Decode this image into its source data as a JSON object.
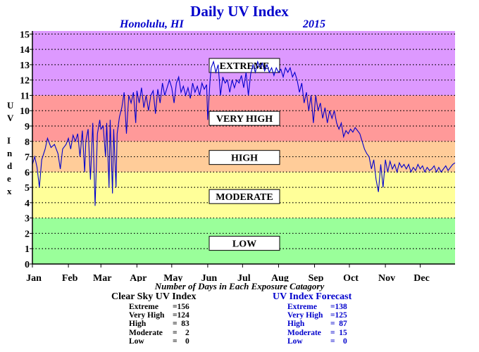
{
  "chart_data": {
    "type": "line",
    "title": "Daily UV Index",
    "subtitle_location": "Honolulu, HI",
    "subtitle_year": "2015",
    "ylabel": "UV Index",
    "ylim": [
      0,
      15.2
    ],
    "xlim": [
      1,
      365
    ],
    "y_ticks": [
      "0",
      "1",
      "2",
      "3",
      "4",
      "5",
      "6",
      "7",
      "8",
      "9",
      "10",
      "11",
      "12",
      "13",
      "14",
      "15"
    ],
    "months": [
      "Jan",
      "Feb",
      "Mar",
      "Apr",
      "May",
      "Jun",
      "Jul",
      "Aug",
      "Sep",
      "Oct",
      "Nov",
      "Dec"
    ],
    "grid": true,
    "bands": [
      {
        "label": "LOW",
        "from": 0,
        "to": 3,
        "color": "#9aff9a",
        "label_y": 1.35
      },
      {
        "label": "MODERATE",
        "from": 3,
        "to": 6,
        "color": "#ffff99",
        "label_y": 4.4
      },
      {
        "label": "HIGH",
        "from": 6,
        "to": 8,
        "color": "#ffcc99",
        "label_y": 6.95
      },
      {
        "label": "VERY HIGH",
        "from": 8,
        "to": 11,
        "color": "#ff9999",
        "label_y": 9.5
      },
      {
        "label": "EXTREME",
        "from": 11,
        "to": 15.2,
        "color": "#dd99ff",
        "label_y": 12.95
      }
    ],
    "series": [
      {
        "color": "#0000cc",
        "points": [
          [
            1,
            6.5
          ],
          [
            3,
            7.0
          ],
          [
            5,
            6.3
          ],
          [
            7,
            5.0
          ],
          [
            9,
            6.8
          ],
          [
            12,
            7.5
          ],
          [
            14,
            8.2
          ],
          [
            17,
            7.6
          ],
          [
            20,
            7.8
          ],
          [
            23,
            7.2
          ],
          [
            25,
            6.2
          ],
          [
            27,
            7.5
          ],
          [
            30,
            7.8
          ],
          [
            32,
            8.2
          ],
          [
            34,
            7.5
          ],
          [
            36,
            8.4
          ],
          [
            38,
            8.0
          ],
          [
            40,
            8.5
          ],
          [
            42,
            7.0
          ],
          [
            44,
            8.7
          ],
          [
            46,
            6.0
          ],
          [
            47,
            8.0
          ],
          [
            49,
            8.8
          ],
          [
            51,
            5.5
          ],
          [
            53,
            9.2
          ],
          [
            55,
            3.8
          ],
          [
            57,
            8.5
          ],
          [
            59,
            9.4
          ],
          [
            60,
            8.8
          ],
          [
            62,
            9.0
          ],
          [
            64,
            7.0
          ],
          [
            65,
            9.2
          ],
          [
            67,
            5.0
          ],
          [
            68,
            9.4
          ],
          [
            70,
            4.6
          ],
          [
            71,
            8.8
          ],
          [
            73,
            5.0
          ],
          [
            74,
            8.5
          ],
          [
            76,
            9.6
          ],
          [
            78,
            10.2
          ],
          [
            80,
            11.2
          ],
          [
            82,
            8.5
          ],
          [
            84,
            11.0
          ],
          [
            86,
            10.5
          ],
          [
            88,
            11.2
          ],
          [
            90,
            9.2
          ],
          [
            91,
            11.3
          ],
          [
            93,
            10.5
          ],
          [
            95,
            11.5
          ],
          [
            97,
            10.2
          ],
          [
            99,
            11.0
          ],
          [
            101,
            10.0
          ],
          [
            103,
            11.0
          ],
          [
            105,
            11.3
          ],
          [
            107,
            9.8
          ],
          [
            109,
            11.4
          ],
          [
            111,
            10.5
          ],
          [
            113,
            11.8
          ],
          [
            115,
            11.0
          ],
          [
            117,
            11.5
          ],
          [
            119,
            12.0
          ],
          [
            121,
            11.5
          ],
          [
            123,
            10.5
          ],
          [
            125,
            11.8
          ],
          [
            127,
            12.2
          ],
          [
            129,
            11.2
          ],
          [
            131,
            11.6
          ],
          [
            133,
            11.0
          ],
          [
            135,
            11.5
          ],
          [
            137,
            10.8
          ],
          [
            139,
            11.8
          ],
          [
            141,
            11.2
          ],
          [
            143,
            11.6
          ],
          [
            145,
            11.0
          ],
          [
            147,
            11.8
          ],
          [
            149,
            11.4
          ],
          [
            151,
            11.7
          ],
          [
            152,
            9.4
          ],
          [
            154,
            12.0
          ],
          [
            155,
            12.8
          ],
          [
            157,
            13.2
          ],
          [
            159,
            12.5
          ],
          [
            161,
            13.0
          ],
          [
            163,
            11.0
          ],
          [
            165,
            12.2
          ],
          [
            167,
            11.8
          ],
          [
            169,
            12.0
          ],
          [
            171,
            11.2
          ],
          [
            173,
            12.0
          ],
          [
            175,
            11.5
          ],
          [
            177,
            12.0
          ],
          [
            179,
            11.8
          ],
          [
            181,
            12.3
          ],
          [
            183,
            11.5
          ],
          [
            185,
            12.5
          ],
          [
            187,
            11.0
          ],
          [
            189,
            12.4
          ],
          [
            191,
            13.0
          ],
          [
            193,
            12.5
          ],
          [
            195,
            13.2
          ],
          [
            197,
            12.8
          ],
          [
            199,
            13.1
          ],
          [
            201,
            12.6
          ],
          [
            203,
            13.0
          ],
          [
            205,
            12.5
          ],
          [
            207,
            12.8
          ],
          [
            209,
            12.3
          ],
          [
            211,
            12.8
          ],
          [
            213,
            12.5
          ],
          [
            215,
            12.7
          ],
          [
            217,
            12.2
          ],
          [
            219,
            12.8
          ],
          [
            221,
            12.5
          ],
          [
            223,
            12.8
          ],
          [
            225,
            12.2
          ],
          [
            227,
            12.5
          ],
          [
            229,
            12.0
          ],
          [
            231,
            11.2
          ],
          [
            233,
            11.8
          ],
          [
            235,
            10.5
          ],
          [
            237,
            11.2
          ],
          [
            239,
            10.0
          ],
          [
            241,
            11.0
          ],
          [
            243,
            9.2
          ],
          [
            245,
            11.0
          ],
          [
            247,
            10.0
          ],
          [
            249,
            10.5
          ],
          [
            251,
            9.5
          ],
          [
            253,
            10.2
          ],
          [
            255,
            9.2
          ],
          [
            257,
            10.0
          ],
          [
            259,
            9.5
          ],
          [
            261,
            10.0
          ],
          [
            263,
            9.2
          ],
          [
            265,
            8.8
          ],
          [
            267,
            9.2
          ],
          [
            269,
            8.3
          ],
          [
            271,
            8.7
          ],
          [
            273,
            8.5
          ],
          [
            275,
            8.8
          ],
          [
            277,
            8.6
          ],
          [
            279,
            8.9
          ],
          [
            281,
            8.7
          ],
          [
            283,
            8.5
          ],
          [
            285,
            8.0
          ],
          [
            287,
            7.5
          ],
          [
            289,
            7.2
          ],
          [
            291,
            7.0
          ],
          [
            293,
            6.2
          ],
          [
            295,
            6.8
          ],
          [
            297,
            5.5
          ],
          [
            299,
            4.7
          ],
          [
            301,
            6.5
          ],
          [
            303,
            5.0
          ],
          [
            305,
            6.8
          ],
          [
            307,
            6.0
          ],
          [
            309,
            6.7
          ],
          [
            311,
            6.2
          ],
          [
            313,
            6.5
          ],
          [
            315,
            6.0
          ],
          [
            317,
            6.6
          ],
          [
            319,
            6.3
          ],
          [
            321,
            6.5
          ],
          [
            323,
            6.2
          ],
          [
            325,
            6.5
          ],
          [
            327,
            6.0
          ],
          [
            329,
            6.3
          ],
          [
            331,
            6.1
          ],
          [
            333,
            6.5
          ],
          [
            335,
            6.2
          ],
          [
            337,
            6.4
          ],
          [
            339,
            6.0
          ],
          [
            341,
            6.3
          ],
          [
            343,
            6.1
          ],
          [
            345,
            6.2
          ],
          [
            347,
            6.4
          ],
          [
            349,
            6.0
          ],
          [
            351,
            6.3
          ],
          [
            353,
            6.0
          ],
          [
            355,
            6.2
          ],
          [
            357,
            6.4
          ],
          [
            359,
            6.1
          ],
          [
            361,
            6.3
          ],
          [
            363,
            6.5
          ],
          [
            365,
            6.6
          ]
        ]
      }
    ],
    "category_note": "Number of Days in Each Exposure Catagory",
    "stats": {
      "clear_sky": {
        "title": "Clear Sky UV Index",
        "rows": [
          {
            "label": "Extreme",
            "value": "=156"
          },
          {
            "label": "Very High",
            "value": "=124"
          },
          {
            "label": "High",
            "value": "=  83"
          },
          {
            "label": "Moderate",
            "value": "=    2"
          },
          {
            "label": "Low",
            "value": "=    0"
          }
        ]
      },
      "forecast": {
        "title": "UV Index Forecast",
        "rows": [
          {
            "label": "Extreme",
            "value": "=138"
          },
          {
            "label": "Very High",
            "value": "=125"
          },
          {
            "label": "High",
            "value": "=  87"
          },
          {
            "label": "Moderate",
            "value": "=  15"
          },
          {
            "label": "Low",
            "value": "=    0"
          }
        ]
      }
    }
  }
}
